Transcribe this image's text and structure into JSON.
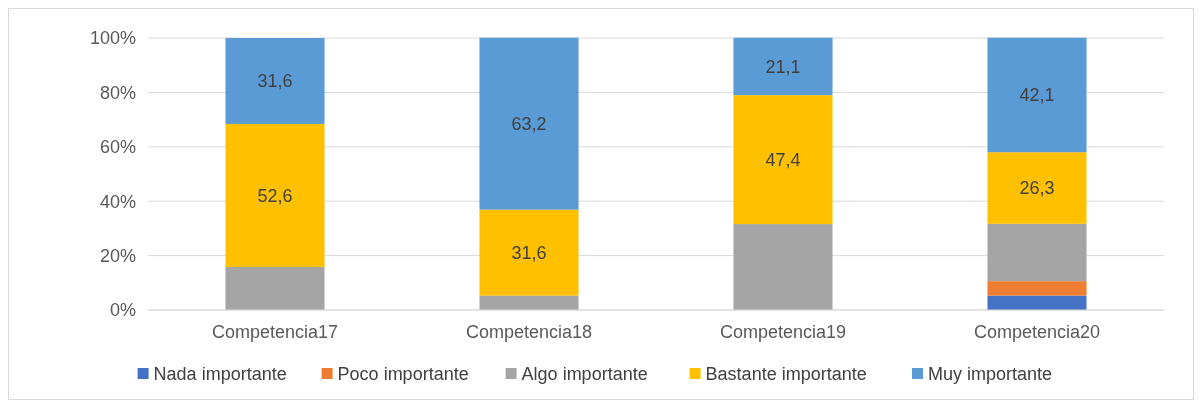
{
  "chart_data": {
    "type": "bar",
    "stacked": true,
    "categories": [
      "Competencia17",
      "Competencia18",
      "Competencia19",
      "Competencia20"
    ],
    "series": [
      {
        "name": "Nada importante",
        "color": "#4472c4",
        "values": [
          0,
          0,
          0,
          5.3
        ]
      },
      {
        "name": "Poco importante",
        "color": "#ed7d31",
        "values": [
          0,
          0,
          0,
          5.3
        ]
      },
      {
        "name": "Algo importante",
        "color": "#a5a5a5",
        "values": [
          15.8,
          5.3,
          31.6,
          21.1
        ]
      },
      {
        "name": "Bastante importante",
        "color": "#ffc000",
        "values": [
          52.6,
          31.6,
          47.4,
          26.3
        ],
        "value_labels": [
          "52,6",
          "31,6",
          "47,4",
          "26,3"
        ]
      },
      {
        "name": "Muy importante",
        "color": "#5b9bd5",
        "values": [
          31.6,
          63.2,
          21.1,
          42.1
        ],
        "value_labels": [
          "31,6",
          "63,2",
          "21,1",
          "42,1"
        ]
      }
    ],
    "ylim": [
      0,
      100
    ],
    "yticks": [
      {
        "value": 0,
        "label": "0%"
      },
      {
        "value": 20,
        "label": "20%"
      },
      {
        "value": 40,
        "label": "40%"
      },
      {
        "value": 60,
        "label": "60%"
      },
      {
        "value": 80,
        "label": "80%"
      },
      {
        "value": 100,
        "label": "100%"
      }
    ],
    "grid": "y",
    "legend": "bottom"
  }
}
